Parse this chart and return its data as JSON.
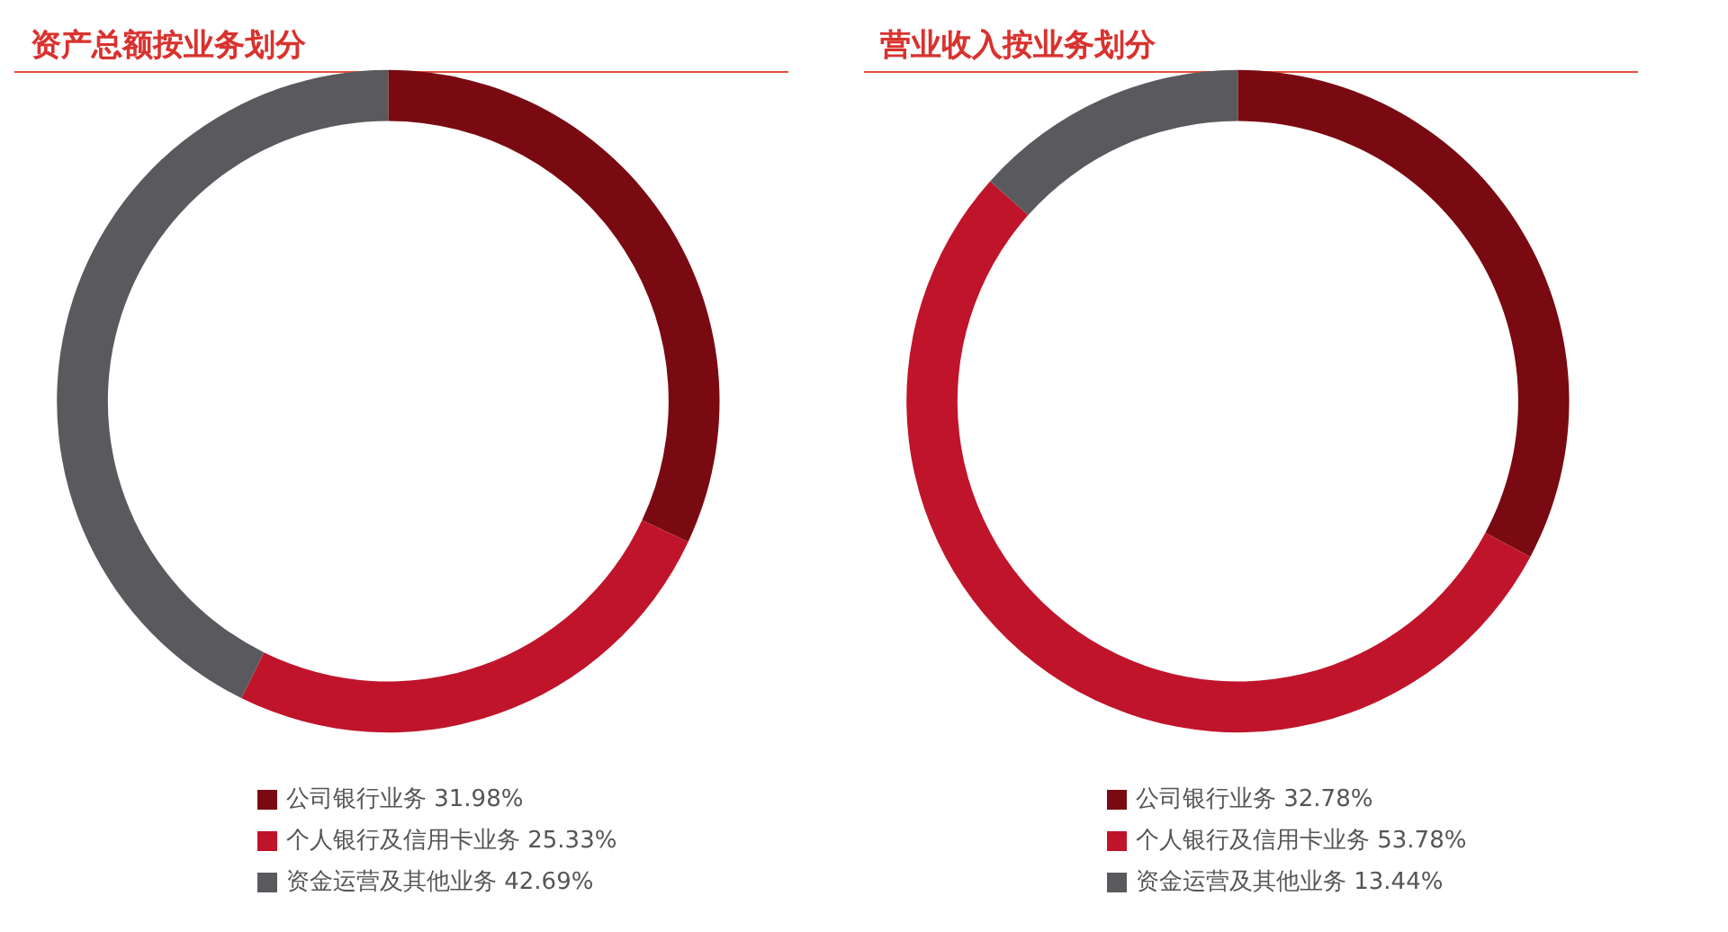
{
  "chart_data": [
    {
      "type": "donut",
      "title": "资产总额按业务划分",
      "categories": [
        "公司银行业务 31.98%",
        "个人银行及信用卡业务 25.33%",
        "资金运营及其他业务 42.69%"
      ],
      "values": [
        31.98,
        25.33,
        42.69
      ],
      "colors": [
        "#7a0a12",
        "#c0142a",
        "#5a5a5e"
      ],
      "legend": "bottom"
    },
    {
      "type": "donut",
      "title": "营业收入按业务划分",
      "categories": [
        "公司银行业务 32.78%",
        "个人银行及信用卡业务 53.78%",
        "资金运营及其他业务 13.44%"
      ],
      "values": [
        32.78,
        53.78,
        13.44
      ],
      "colors": [
        "#7a0a12",
        "#c0142a",
        "#5a5a5e"
      ],
      "legend": "bottom"
    }
  ]
}
